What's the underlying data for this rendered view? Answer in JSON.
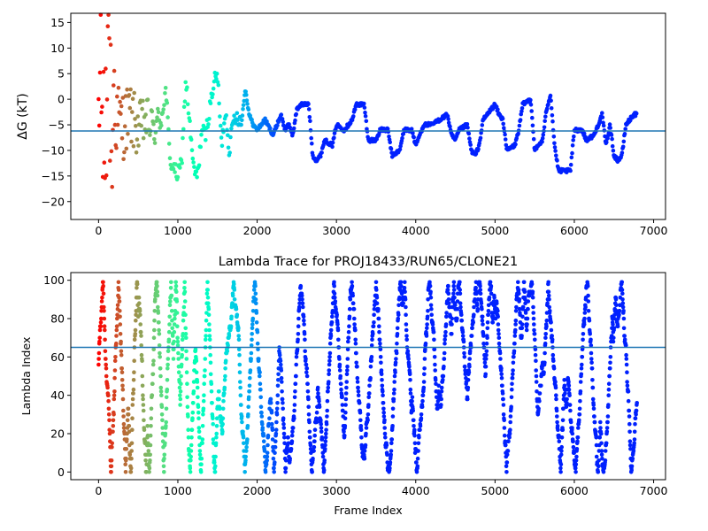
{
  "chart_data": [
    {
      "type": "scatter",
      "title": "",
      "xlabel": "",
      "ylabel": "ΔG (kT)",
      "xlim": [
        -350,
        7150
      ],
      "ylim": [
        -23.5,
        16.8
      ],
      "xticks": [
        0,
        1000,
        2000,
        3000,
        4000,
        5000,
        6000,
        7000
      ],
      "yticks": [
        -20,
        -15,
        -10,
        -5,
        0,
        5,
        10,
        15
      ],
      "hline": -6.2,
      "hline_color": "#1f77b4",
      "colormap": "rainbow (frame index: red early → violet late)",
      "trace_keypoints": [
        [
          0,
          0
        ],
        [
          100,
          0
        ],
        [
          200,
          -3
        ],
        [
          300,
          -5
        ],
        [
          400,
          -3
        ],
        [
          500,
          -6
        ],
        [
          600,
          -4
        ],
        [
          700,
          -6
        ],
        [
          800,
          -3
        ],
        [
          850,
          2
        ],
        [
          900,
          -12
        ],
        [
          1000,
          -15
        ],
        [
          1050,
          -12
        ],
        [
          1100,
          4
        ],
        [
          1150,
          -5
        ],
        [
          1200,
          -14
        ],
        [
          1250,
          -15
        ],
        [
          1300,
          -6
        ],
        [
          1350,
          -7
        ],
        [
          1400,
          -2
        ],
        [
          1450,
          3
        ],
        [
          1500,
          5
        ],
        [
          1550,
          -9
        ],
        [
          1600,
          -2
        ],
        [
          1650,
          -10
        ],
        [
          1700,
          -4
        ],
        [
          1750,
          -3
        ],
        [
          1800,
          -5
        ],
        [
          1850,
          2
        ],
        [
          1900,
          -3
        ],
        [
          1950,
          -5
        ],
        [
          2000,
          -6
        ],
        [
          2100,
          -4
        ],
        [
          2200,
          -7
        ],
        [
          2300,
          -3
        ],
        [
          2350,
          -6
        ],
        [
          2400,
          -5
        ],
        [
          2450,
          -7
        ],
        [
          2500,
          -2
        ],
        [
          2550,
          -1
        ],
        [
          2650,
          -1
        ],
        [
          2700,
          -11
        ],
        [
          2750,
          -12
        ],
        [
          2800,
          -11
        ],
        [
          2850,
          -8
        ],
        [
          2950,
          -9
        ],
        [
          3000,
          -5
        ],
        [
          3100,
          -6
        ],
        [
          3200,
          -4
        ],
        [
          3250,
          -1
        ],
        [
          3350,
          -1
        ],
        [
          3400,
          -8
        ],
        [
          3500,
          -8
        ],
        [
          3550,
          -6
        ],
        [
          3650,
          -6
        ],
        [
          3700,
          -11
        ],
        [
          3800,
          -10
        ],
        [
          3850,
          -6
        ],
        [
          3950,
          -6
        ],
        [
          4000,
          -9
        ],
        [
          4050,
          -7
        ],
        [
          4100,
          -5
        ],
        [
          4200,
          -5
        ],
        [
          4300,
          -4
        ],
        [
          4400,
          -3
        ],
        [
          4450,
          -7
        ],
        [
          4500,
          -8
        ],
        [
          4550,
          -6
        ],
        [
          4650,
          -5
        ],
        [
          4700,
          -10
        ],
        [
          4750,
          -11
        ],
        [
          4800,
          -9
        ],
        [
          4850,
          -4
        ],
        [
          4950,
          -2
        ],
        [
          5000,
          -1
        ],
        [
          5050,
          -3
        ],
        [
          5100,
          -4
        ],
        [
          5150,
          -10
        ],
        [
          5250,
          -9
        ],
        [
          5300,
          -6
        ],
        [
          5350,
          -1
        ],
        [
          5450,
          0
        ],
        [
          5500,
          -10
        ],
        [
          5600,
          -8
        ],
        [
          5650,
          -2
        ],
        [
          5700,
          1
        ],
        [
          5750,
          -9
        ],
        [
          5800,
          -14
        ],
        [
          5950,
          -14
        ],
        [
          6000,
          -6
        ],
        [
          6100,
          -6
        ],
        [
          6150,
          -8
        ],
        [
          6250,
          -7
        ],
        [
          6300,
          -5
        ],
        [
          6350,
          -3
        ],
        [
          6400,
          -9
        ],
        [
          6450,
          -5
        ],
        [
          6500,
          -11
        ],
        [
          6550,
          -12
        ],
        [
          6600,
          -11
        ],
        [
          6650,
          -5
        ],
        [
          6750,
          -3
        ],
        [
          6790,
          -3
        ]
      ]
    },
    {
      "type": "scatter",
      "title": "Lambda Trace for PROJ18433/RUN65/CLONE21",
      "xlabel": "Frame Index",
      "ylabel": "Lambda Index",
      "xlim": [
        -350,
        7150
      ],
      "ylim": [
        -4,
        104
      ],
      "xticks": [
        0,
        1000,
        2000,
        3000,
        4000,
        5000,
        6000,
        7000
      ],
      "yticks": [
        0,
        20,
        40,
        60,
        80,
        100
      ],
      "hline": 65,
      "hline_color": "#1f77b4",
      "colormap": "rainbow (frame index: red early → violet late)",
      "n_frames": 6790,
      "lambda_range": [
        0,
        99
      ]
    }
  ]
}
